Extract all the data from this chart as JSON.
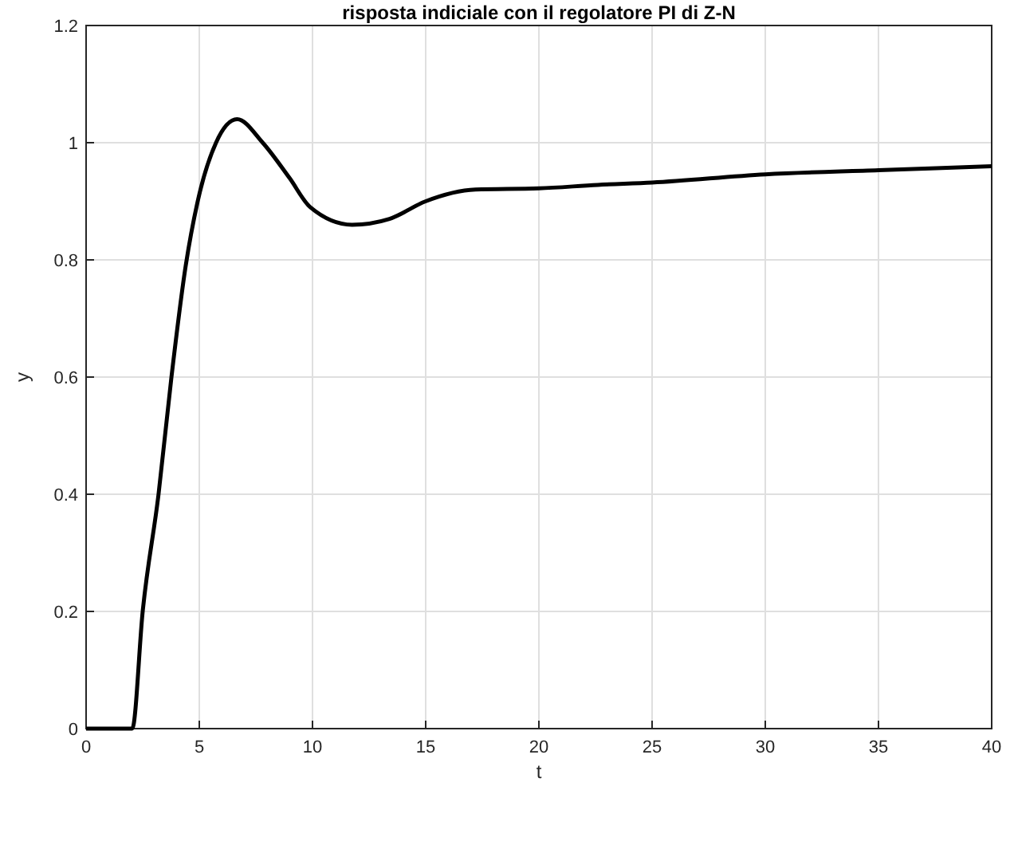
{
  "chart_data": {
    "type": "line",
    "title": "risposta indiciale con il regolatore PI di Z-N",
    "xlabel": "t",
    "ylabel": "y",
    "x": [
      0,
      2,
      2.04,
      2.5,
      3.2,
      3.77,
      4.4,
      4.93,
      5.74,
      6.67,
      7.8,
      8.98,
      9.9,
      11.75,
      13.4,
      15,
      17.2,
      20,
      22.6,
      25,
      30,
      35,
      40
    ],
    "series": [
      {
        "color": "#000000",
        "values": [
          0,
          0,
          0,
          0.2,
          0.4,
          0.6,
          0.79,
          0.9,
          1.0,
          1.04,
          1.0,
          0.94,
          0.89,
          0.86,
          0.87,
          0.9,
          0.92,
          0.922,
          0.928,
          0.932,
          0.946,
          0.953,
          0.96
        ]
      }
    ],
    "xlim": [
      0,
      40
    ],
    "ylim": [
      0,
      1.2
    ],
    "xticks": [
      0,
      5,
      10,
      15,
      20,
      25,
      30,
      35,
      40
    ],
    "yticks": [
      0,
      0.2,
      0.4,
      0.6,
      0.8,
      1,
      1.2
    ],
    "grid": true,
    "marker": "none",
    "line_style": "solid"
  }
}
